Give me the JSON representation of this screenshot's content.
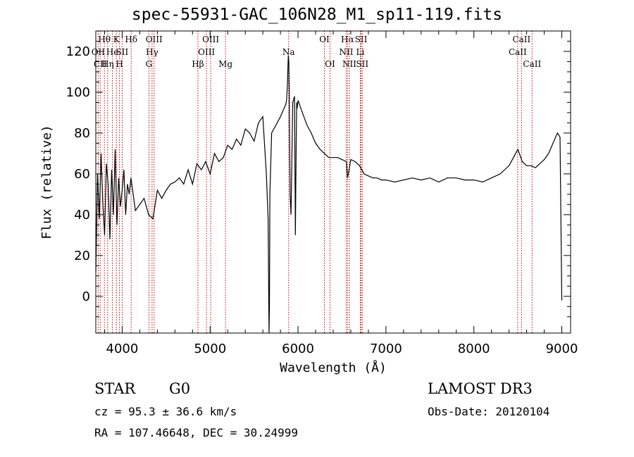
{
  "title": "spec-55931-GAC_106N28_M1_sp11-119.fits",
  "info": {
    "class": "STAR",
    "subclass": "G0",
    "survey": "LAMOST DR3",
    "cz": "cz = 95.3 ± 36.6 km/s",
    "obs_date": "Obs-Date: 20120104",
    "coords": "RA = 107.46648, DEC =  30.24999"
  },
  "chart_data": {
    "type": "line",
    "title": "spec-55931-GAC_106N28_M1_sp11-119.fits",
    "xlabel": "Wavelength (Å)",
    "ylabel": "Flux (relative)",
    "xlim": [
      3700,
      9100
    ],
    "ylim": [
      -18,
      130
    ],
    "xticks": [
      4000,
      5000,
      6000,
      7000,
      8000,
      9000
    ],
    "yticks": [
      0,
      20,
      40,
      60,
      80,
      100,
      120
    ],
    "series": [
      {
        "name": "flux",
        "x": [
          3700,
          3720,
          3740,
          3760,
          3780,
          3800,
          3820,
          3840,
          3860,
          3880,
          3900,
          3920,
          3940,
          3960,
          3980,
          4000,
          4020,
          4040,
          4060,
          4080,
          4100,
          4150,
          4200,
          4250,
          4300,
          4350,
          4400,
          4450,
          4500,
          4550,
          4600,
          4650,
          4700,
          4750,
          4800,
          4850,
          4900,
          4950,
          5000,
          5050,
          5100,
          5150,
          5200,
          5250,
          5300,
          5350,
          5400,
          5450,
          5500,
          5550,
          5600,
          5640,
          5660,
          5670,
          5675,
          5680,
          5700,
          5750,
          5800,
          5840,
          5860,
          5870,
          5880,
          5885,
          5890,
          5895,
          5900,
          5910,
          5920,
          5940,
          5960,
          5970,
          5980,
          5985,
          5990,
          6000,
          6050,
          6100,
          6150,
          6200,
          6250,
          6300,
          6350,
          6400,
          6450,
          6500,
          6550,
          6563,
          6580,
          6600,
          6650,
          6700,
          6750,
          6800,
          6850,
          6900,
          6950,
          7000,
          7100,
          7200,
          7300,
          7400,
          7500,
          7600,
          7700,
          7800,
          7900,
          8000,
          8100,
          8200,
          8300,
          8400,
          8450,
          8500,
          8550,
          8600,
          8650,
          8700,
          8750,
          8800,
          8850,
          8900,
          8950,
          8980,
          9000
        ],
        "y": [
          12,
          60,
          38,
          70,
          45,
          30,
          65,
          55,
          28,
          62,
          40,
          72,
          35,
          58,
          44,
          52,
          62,
          40,
          55,
          50,
          58,
          42,
          45,
          48,
          40,
          38,
          52,
          48,
          52,
          55,
          56,
          58,
          55,
          62,
          55,
          65,
          62,
          66,
          60,
          70,
          66,
          68,
          74,
          72,
          77,
          74,
          82,
          80,
          76,
          85,
          88,
          60,
          38,
          -18,
          -5,
          50,
          80,
          84,
          88,
          92,
          94,
          96,
          104,
          112,
          118,
          115,
          100,
          50,
          40,
          95,
          98,
          30,
          80,
          95,
          92,
          96,
          90,
          84,
          80,
          75,
          72,
          70,
          68,
          68,
          68,
          67,
          66,
          58,
          62,
          67,
          66,
          64,
          60,
          59,
          58,
          58,
          57,
          57,
          56,
          57,
          58,
          57,
          58,
          56,
          58,
          58,
          57,
          57,
          56,
          58,
          60,
          64,
          68,
          72,
          66,
          64,
          64,
          63,
          65,
          67,
          70,
          75,
          80,
          78,
          -2
        ]
      }
    ],
    "spectral_lines": [
      {
        "label": "Hθ",
        "x": 3798,
        "row": 1
      },
      {
        "label": "OII",
        "x": 3727,
        "row": 2
      },
      {
        "label": "CII",
        "x": 3750,
        "row": 3
      },
      {
        "label": "Hη",
        "x": 3835,
        "row": 3
      },
      {
        "label": "He",
        "x": 3889,
        "row": 2
      },
      {
        "label": "K",
        "x": 3934,
        "row": 1
      },
      {
        "label": "H",
        "x": 3969,
        "row": 3
      },
      {
        "label": "SII",
        "x": 4000,
        "row": 2
      },
      {
        "label": "Hδ",
        "x": 4102,
        "row": 1
      },
      {
        "label": "OIII",
        "x": 4363,
        "row": 1
      },
      {
        "label": "Hγ",
        "x": 4340,
        "row": 2
      },
      {
        "label": "G",
        "x": 4304,
        "row": 3
      },
      {
        "label": "OIII",
        "x": 5007,
        "row": 1
      },
      {
        "label": "OIII",
        "x": 4959,
        "row": 2
      },
      {
        "label": "Hβ",
        "x": 4861,
        "row": 3
      },
      {
        "label": "Mg",
        "x": 5175,
        "row": 3
      },
      {
        "label": "Na",
        "x": 5893,
        "row": 2
      },
      {
        "label": "OI",
        "x": 6300,
        "row": 1
      },
      {
        "label": "OI",
        "x": 6364,
        "row": 3
      },
      {
        "label": "Hα",
        "x": 6563,
        "row": 1
      },
      {
        "label": "SII",
        "x": 6717,
        "row": 1
      },
      {
        "label": "NII",
        "x": 6548,
        "row": 2
      },
      {
        "label": "Li",
        "x": 6708,
        "row": 2
      },
      {
        "label": "NII",
        "x": 6584,
        "row": 3
      },
      {
        "label": "SII",
        "x": 6731,
        "row": 3
      },
      {
        "label": "CaII",
        "x": 8542,
        "row": 1
      },
      {
        "label": "CaII",
        "x": 8498,
        "row": 2
      },
      {
        "label": "CaII",
        "x": 8662,
        "row": 3
      }
    ],
    "line_colors": {
      "flux": "#000000",
      "markers": "#cc0000"
    }
  }
}
